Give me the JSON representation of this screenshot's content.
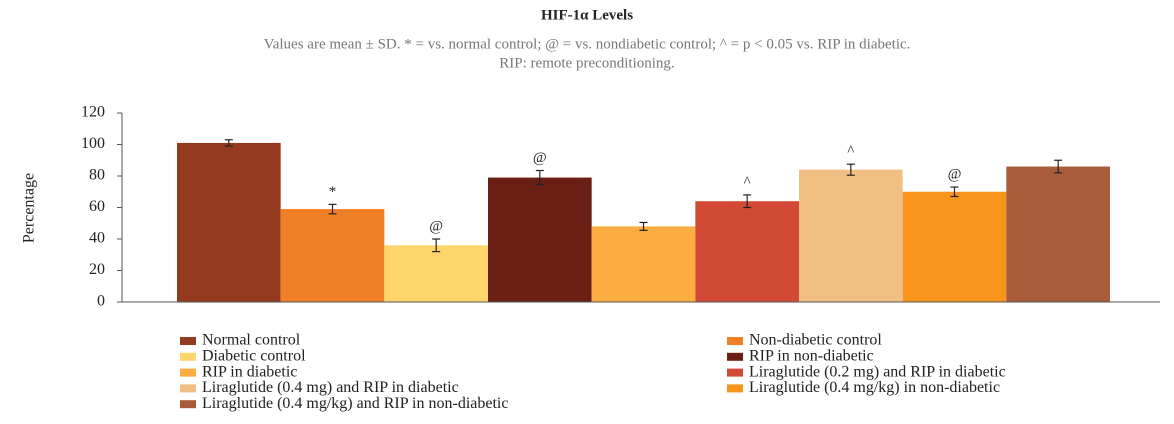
{
  "chart_data": {
    "type": "bar",
    "title": "HIF-1α Levels",
    "subtitle": [
      "Values are mean ± SD. * = vs. normal control; @ = vs. nondiabetic control; ^ = p < 0.05 vs. RIP in diabetic.",
      "RIP: remote preconditioning."
    ],
    "y_label": "Percentage",
    "ylim": [
      0,
      120
    ],
    "yticks": [
      0,
      20,
      40,
      60,
      80,
      100,
      120
    ],
    "series": [
      {
        "name": "Normal control",
        "color": "#943a1e",
        "values": [
          101
        ],
        "errors": [
          2
        ]
      },
      {
        "name": "Non-diabetic control",
        "color": "#f07f25",
        "values": [
          59
        ],
        "errors": [
          3
        ]
      },
      {
        "name": "Diabetic control",
        "color": "#fdd56a",
        "values": [
          36
        ],
        "errors": [
          4
        ]
      },
      {
        "name": "RIP in non-diabetic",
        "color": "#6b1f14",
        "values": [
          79
        ],
        "errors": [
          4.5
        ]
      },
      {
        "name": "RIP in diabetic",
        "color": "#fbae3f",
        "values": [
          48
        ],
        "errors": [
          2.5
        ]
      },
      {
        "name": "Liraglutide (0.2 mg) and RIP in diabetic",
        "color": "#d24a35",
        "values": [
          64
        ],
        "errors": [
          4
        ]
      },
      {
        "name": "Liraglutide (0.4 mg) and RIP in diabetic",
        "color": "#f1bf82",
        "values": [
          84
        ],
        "errors": [
          3.5
        ]
      },
      {
        "name": "Liraglutide (0.4 mg/kg) in non-diabetic",
        "color": "#f7941d",
        "values": [
          70
        ],
        "errors": [
          3
        ]
      },
      {
        "name": "Liraglutide (0.4 mg/kg) and RIP in non-diabetic",
        "color": "#a95b3a",
        "values": [
          86
        ],
        "errors": [
          4
        ]
      }
    ],
    "annotations": [
      null,
      "*",
      "@",
      "@",
      null,
      "^",
      "^",
      "@",
      null
    ],
    "legend": "bottom"
  }
}
